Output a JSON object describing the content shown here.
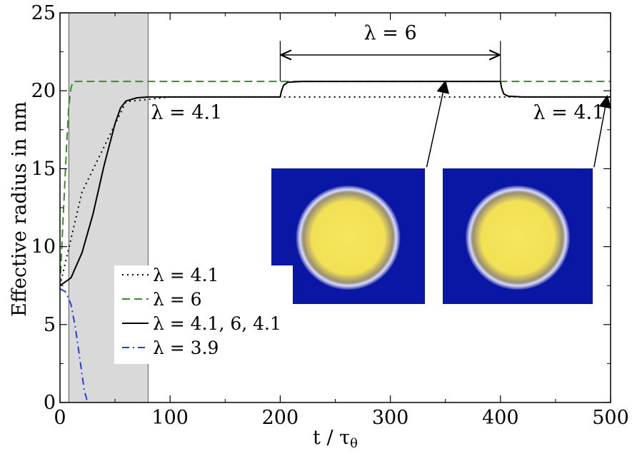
{
  "chart_data": {
    "type": "line",
    "xlabel": "t / τ",
    "xlabel_sub": "θ",
    "ylabel": "Effective radius in nm",
    "xlim": [
      0,
      500
    ],
    "ylim": [
      0,
      25
    ],
    "x_ticks": [
      "0",
      "100",
      "200",
      "300",
      "400",
      "500"
    ],
    "y_ticks": [
      "0",
      "5",
      "10",
      "15",
      "20",
      "25"
    ],
    "grid": false,
    "shaded_region": {
      "x": [
        8,
        80
      ],
      "color": "#d9d9d9"
    },
    "legend_position": "bottom-left",
    "series": [
      {
        "name": "λ = 4.1",
        "style": "dotted",
        "color": "#000000",
        "x": [
          0,
          20,
          60,
          100,
          200,
          300,
          400,
          500
        ],
        "y": [
          7.5,
          13.5,
          19.3,
          19.6,
          19.6,
          19.6,
          19.6,
          19.6
        ]
      },
      {
        "name": "λ = 6",
        "style": "dashed",
        "color": "#3a8a2a",
        "x": [
          0,
          3,
          6,
          8,
          10,
          12,
          100,
          200,
          300,
          400,
          500
        ],
        "y": [
          7.5,
          12.0,
          16.5,
          19.0,
          20.2,
          20.6,
          20.6,
          20.6,
          20.6,
          20.6,
          20.6
        ]
      },
      {
        "name": "λ = 4.1, 6, 4.1",
        "style": "solid",
        "color": "#000000",
        "x": [
          0,
          10,
          20,
          30,
          40,
          50,
          55,
          60,
          70,
          80,
          100,
          200,
          201,
          203,
          207,
          220,
          300,
          400,
          401,
          403,
          407,
          420,
          500
        ],
        "y": [
          7.5,
          8.0,
          9.6,
          12.1,
          15.2,
          17.9,
          18.9,
          19.35,
          19.55,
          19.6,
          19.6,
          19.6,
          19.95,
          20.35,
          20.55,
          20.6,
          20.6,
          20.6,
          20.2,
          19.8,
          19.65,
          19.6,
          19.6
        ]
      },
      {
        "name": "λ = 3.9",
        "style": "dashdot",
        "color": "#1f3fe0",
        "x": [
          0,
          5,
          10,
          14,
          18,
          22,
          25
        ],
        "y": [
          7.3,
          7.1,
          6.3,
          4.8,
          2.8,
          0.8,
          0
        ]
      }
    ],
    "annotations": [
      {
        "text": "λ = 6",
        "x": 300,
        "y": 23.3
      },
      {
        "text": "λ = 4.1",
        "x": 115,
        "y": 18.2
      },
      {
        "text": "λ = 4.1",
        "x": 462,
        "y": 18.2
      }
    ],
    "span_arrow": {
      "x": [
        200,
        400
      ],
      "y": 22.3,
      "tick_top": 23.2,
      "tick_bottom": 20.6
    },
    "pointer_arrows": [
      {
        "from_x": 333,
        "from_y": 15.1,
        "to_x": 350,
        "to_y": 20.6
      },
      {
        "from_x": 485,
        "from_y": 15.1,
        "to_x": 497,
        "to_y": 19.65
      }
    ],
    "insets": [
      {
        "name": "inset-droplet-lambda-6",
        "bg": "#0a17a5",
        "drop": "#f4e45a",
        "ring": "#cfd2f0"
      },
      {
        "name": "inset-droplet-lambda-4.1",
        "bg": "#0a17a5",
        "drop": "#f4e45a",
        "ring": "#cfd2f0"
      }
    ]
  }
}
